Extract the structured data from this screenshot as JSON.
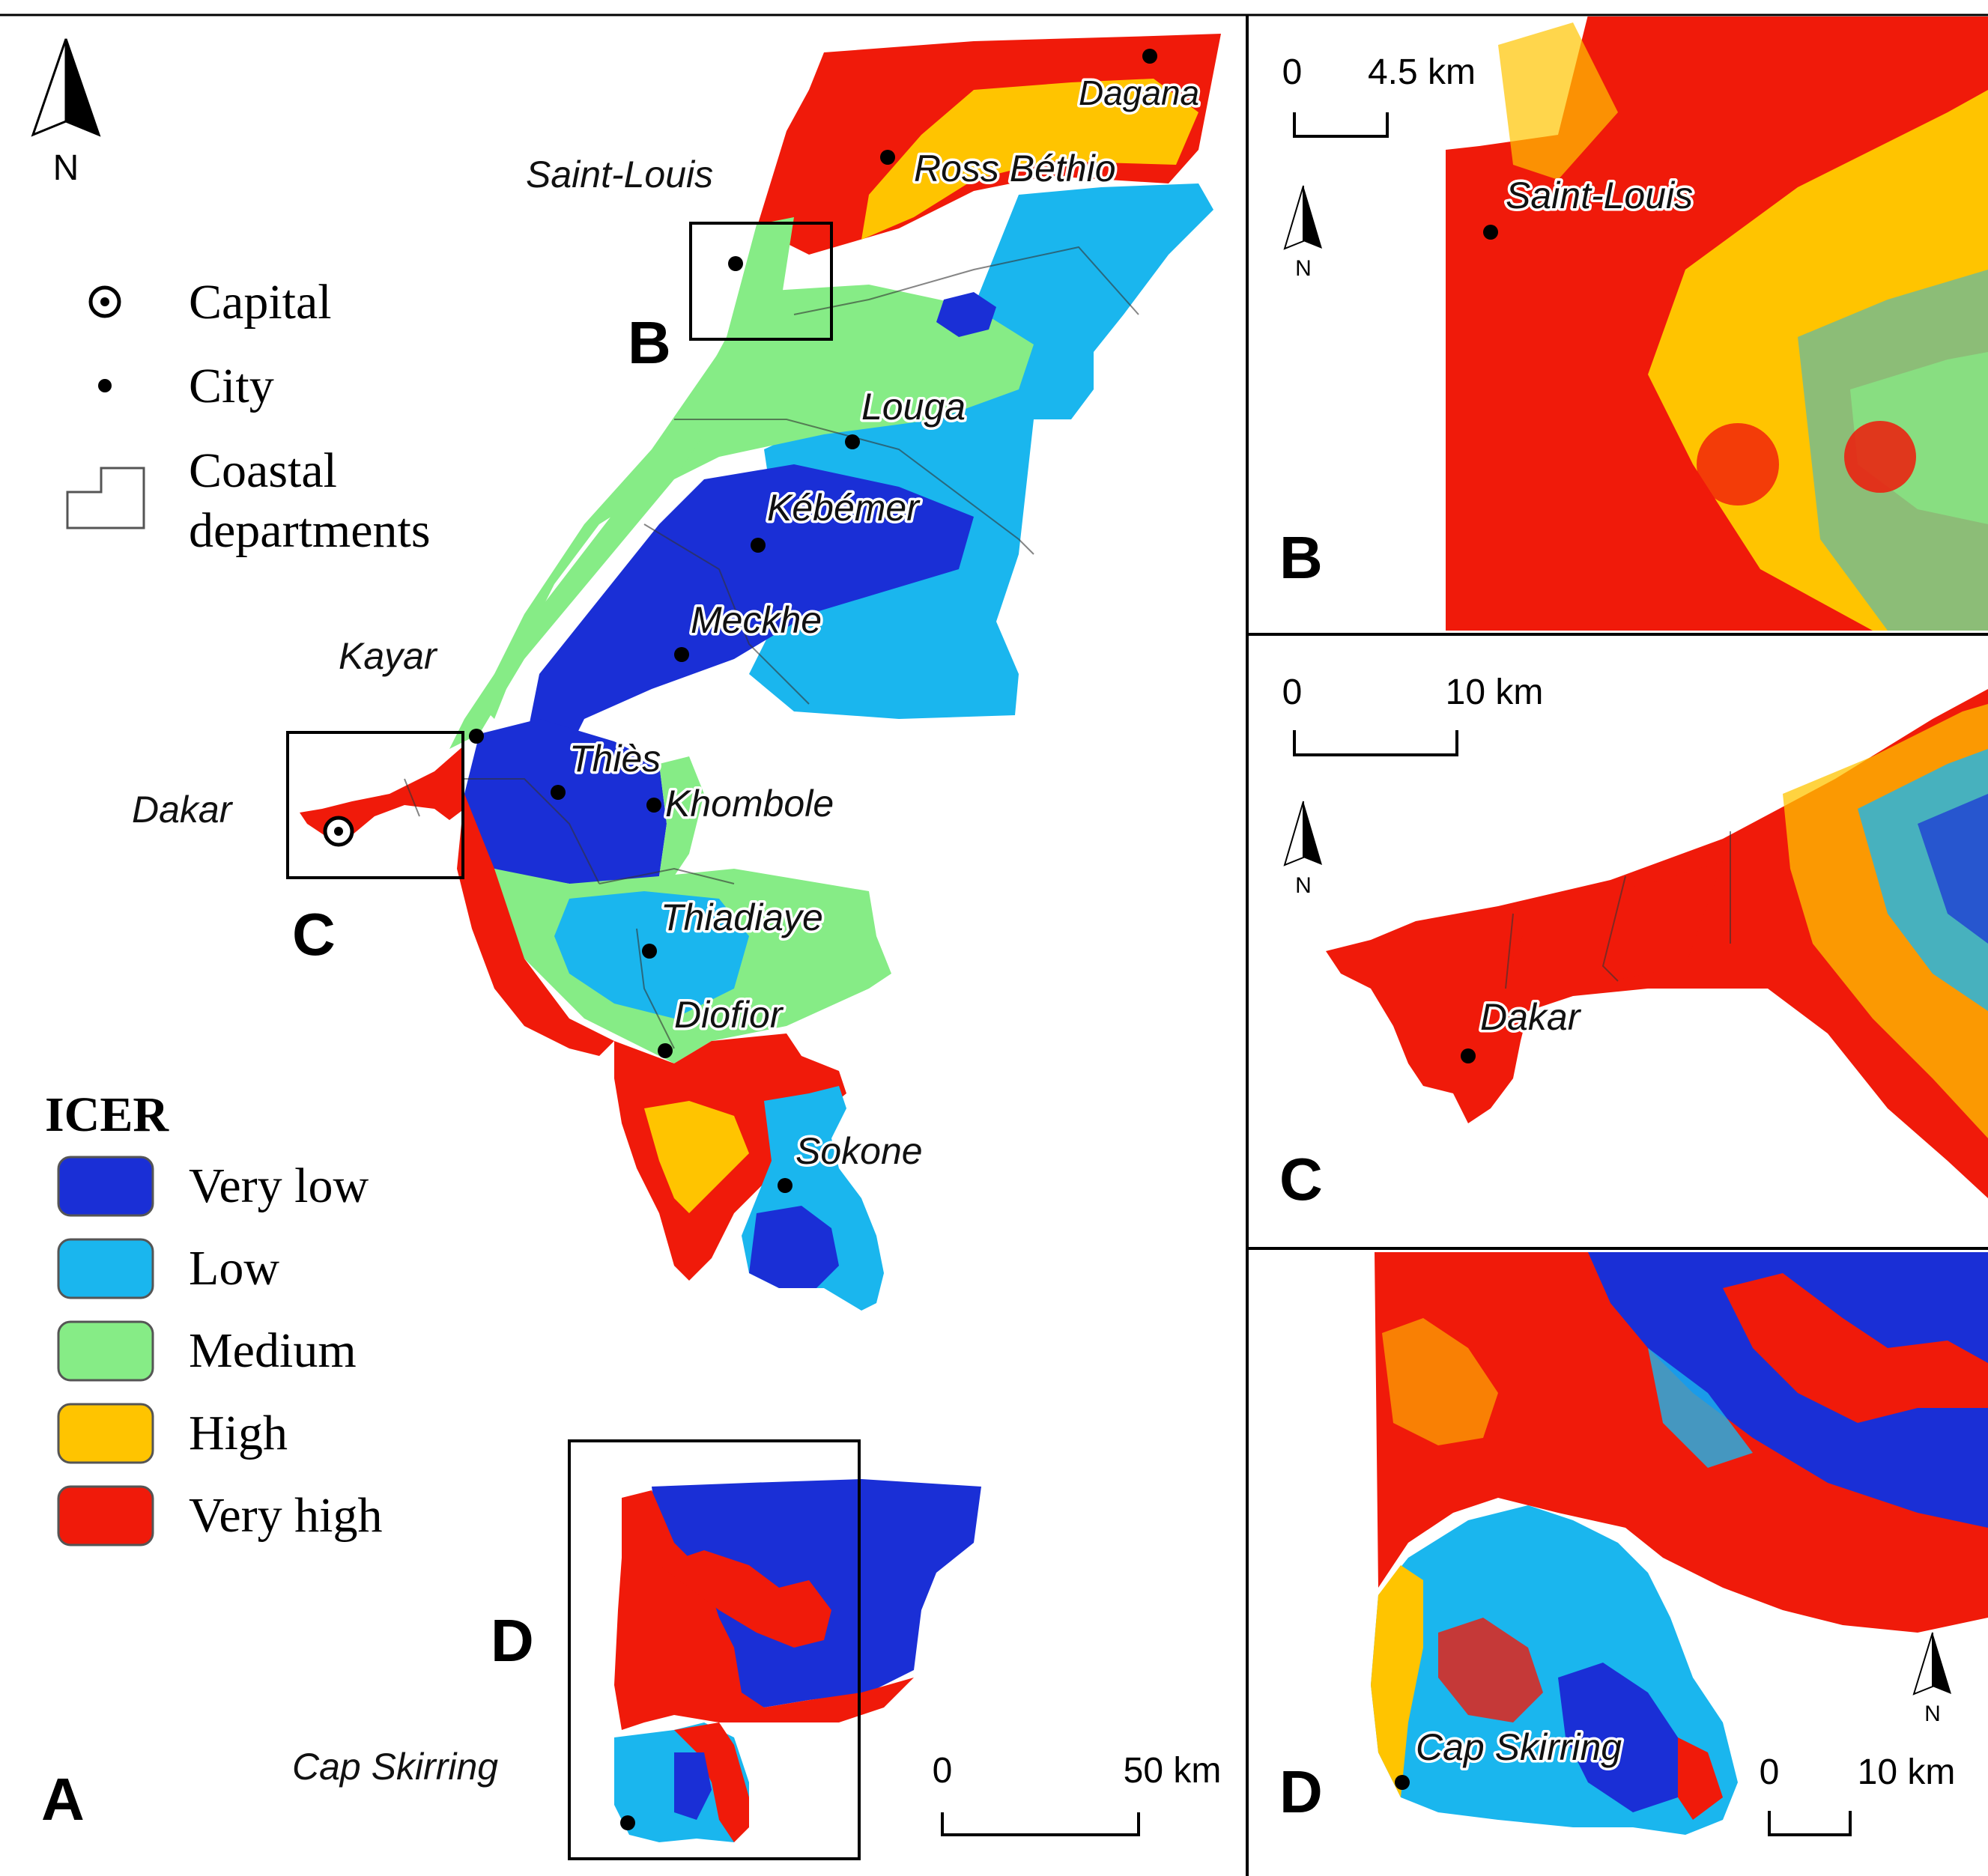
{
  "figure": {
    "panels": {
      "A": "A",
      "B": "B",
      "C": "C",
      "D": "D"
    },
    "north_label": "N",
    "legend_symbols": {
      "capital": "Capital",
      "city": "City",
      "departments_line1": "Coastal",
      "departments_line2": "departments"
    },
    "icer_legend": {
      "title": "ICER",
      "classes": [
        {
          "label": "Very low",
          "color": "#1a2fd6"
        },
        {
          "label": "Low",
          "color": "#1ab6ee"
        },
        {
          "label": "Medium",
          "color": "#86ec86"
        },
        {
          "label": "High",
          "color": "#ffc400"
        },
        {
          "label": "Very high",
          "color": "#f01a0a"
        }
      ]
    },
    "cities": {
      "dagana": "Dagana",
      "ross_bethio": "Ross Béthio",
      "saint_louis": "Saint-Louis",
      "louga": "Louga",
      "kebemer": "Kébémer",
      "meckhe": "Meckhe",
      "kayar": "Kayar",
      "thies": "Thiès",
      "khombole": "Khombole",
      "dakar": "Dakar",
      "thiadiaye": "Thiadiaye",
      "diofior": "Diofior",
      "sokone": "Sokone",
      "cap_skirring": "Cap Skirring"
    },
    "scales": {
      "a_zero": "0",
      "a_max": "50 km",
      "b_zero": "0",
      "b_max": "4.5 km",
      "c_zero": "0",
      "c_max": "10 km",
      "d_zero": "0",
      "d_max": "10 km"
    }
  }
}
